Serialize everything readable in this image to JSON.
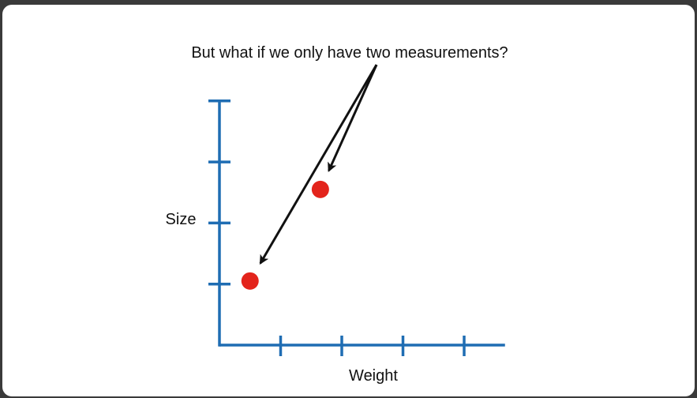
{
  "chart_data": {
    "type": "scatter",
    "title": "",
    "xlabel": "Weight",
    "ylabel": "Size",
    "xlim": [
      0,
      4.5
    ],
    "ylim": [
      0,
      4
    ],
    "x_ticks": [
      1,
      2,
      3,
      4
    ],
    "y_ticks": [
      1,
      2,
      3,
      4
    ],
    "tick_labels_shown": false,
    "grid": false,
    "series": [
      {
        "points": [
          {
            "x": 0.5,
            "y": 1.05
          },
          {
            "x": 1.65,
            "y": 2.55
          }
        ]
      }
    ],
    "annotations": [
      {
        "text": "But what if we only have two measurements?",
        "points_to": [
          "point-0",
          "point-1"
        ]
      }
    ]
  },
  "colors": {
    "axis": "#1f6db3",
    "point": "#e3241c",
    "arrow": "#111111"
  }
}
